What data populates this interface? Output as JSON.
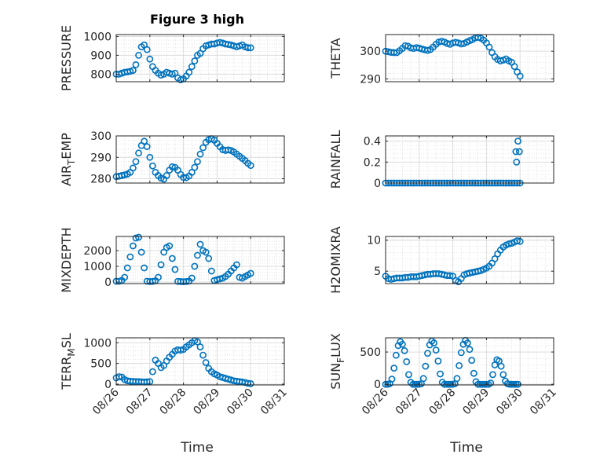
{
  "figure": {
    "title": "Figure 3 high",
    "xlabel": "Time",
    "xticks": [
      "08/26",
      "08/27",
      "08/28",
      "08/29",
      "08/30",
      "08/31"
    ],
    "marker_color": "#0072BD"
  },
  "chart_data": [
    {
      "type": "scatter",
      "ylabel": "PRESSURE",
      "ylabel_parts": [
        "PRESSURE"
      ],
      "ylim": [
        760,
        1010
      ],
      "yticks": [
        800,
        900,
        1000
      ],
      "grid": true,
      "x": [
        "08/26 00:00",
        "08/26 02:00",
        "08/26 04:00",
        "08/26 06:00",
        "08/26 08:00",
        "08/26 10:00",
        "08/26 12:00",
        "08/26 14:00",
        "08/26 16:00",
        "08/26 18:00",
        "08/26 20:00",
        "08/26 22:00",
        "08/27 00:00",
        "08/27 02:00",
        "08/27 04:00",
        "08/27 06:00",
        "08/27 08:00",
        "08/27 10:00",
        "08/27 12:00",
        "08/27 14:00",
        "08/27 16:00",
        "08/27 18:00",
        "08/27 20:00",
        "08/27 22:00",
        "08/28 00:00",
        "08/28 02:00",
        "08/28 04:00",
        "08/28 06:00",
        "08/28 08:00",
        "08/28 10:00",
        "08/28 12:00",
        "08/28 14:00",
        "08/28 16:00",
        "08/28 18:00",
        "08/28 20:00",
        "08/28 22:00",
        "08/29 00:00",
        "08/29 02:00",
        "08/29 04:00",
        "08/29 06:00",
        "08/29 08:00",
        "08/29 10:00",
        "08/29 12:00",
        "08/29 14:00",
        "08/29 16:00",
        "08/29 18:00",
        "08/29 20:00",
        "08/29 22:00",
        "08/30 00:00"
      ],
      "y": [
        800,
        800,
        805,
        810,
        812,
        815,
        820,
        850,
        900,
        945,
        955,
        930,
        880,
        840,
        820,
        805,
        795,
        800,
        810,
        805,
        800,
        805,
        780,
        770,
        775,
        790,
        810,
        840,
        870,
        900,
        910,
        935,
        950,
        955,
        960,
        960,
        965,
        968,
        965,
        960,
        958,
        955,
        950,
        945,
        950,
        955,
        945,
        940,
        940
      ]
    },
    {
      "type": "scatter",
      "ylabel": "THETA",
      "ylabel_parts": [
        "THETA"
      ],
      "ylim": [
        289,
        306
      ],
      "yticks": [
        290,
        300
      ],
      "grid": true,
      "x": [
        "08/26 00:00",
        "08/26 02:00",
        "08/26 04:00",
        "08/26 06:00",
        "08/26 08:00",
        "08/26 10:00",
        "08/26 12:00",
        "08/26 14:00",
        "08/26 16:00",
        "08/26 18:00",
        "08/26 20:00",
        "08/26 22:00",
        "08/27 00:00",
        "08/27 02:00",
        "08/27 04:00",
        "08/27 06:00",
        "08/27 08:00",
        "08/27 10:00",
        "08/27 12:00",
        "08/27 14:00",
        "08/27 16:00",
        "08/27 18:00",
        "08/27 20:00",
        "08/27 22:00",
        "08/28 00:00",
        "08/28 02:00",
        "08/28 04:00",
        "08/28 06:00",
        "08/28 08:00",
        "08/28 10:00",
        "08/28 12:00",
        "08/28 14:00",
        "08/28 16:00",
        "08/28 18:00",
        "08/28 20:00",
        "08/28 22:00",
        "08/29 00:00",
        "08/29 02:00",
        "08/29 04:00",
        "08/29 06:00",
        "08/29 08:00",
        "08/29 10:00",
        "08/29 12:00",
        "08/29 14:00",
        "08/29 16:00",
        "08/29 18:00",
        "08/29 20:00",
        "08/29 22:00",
        "08/30 00:00"
      ],
      "y": [
        300,
        299.8,
        299.6,
        299.5,
        299.5,
        300.2,
        301,
        302,
        301.8,
        301.2,
        301,
        301.3,
        301.1,
        300.8,
        300.5,
        300.3,
        300.6,
        301.5,
        302.5,
        303.3,
        303.6,
        303.3,
        302.8,
        302.5,
        303,
        303.2,
        303,
        302.6,
        302.8,
        303.3,
        303.8,
        304.2,
        304.8,
        305,
        304.7,
        304,
        303,
        301.5,
        299.5,
        298,
        297,
        296.5,
        296.8,
        297.2,
        296.5,
        296,
        294.5,
        292.5,
        291
      ]
    },
    {
      "type": "scatter",
      "ylabel": "AIR_TEMP",
      "ylabel_parts": [
        "AIR",
        "T",
        "EMP"
      ],
      "ylim": [
        278,
        300
      ],
      "yticks": [
        280,
        290,
        300
      ],
      "grid": true,
      "x": [
        "08/26 00:00",
        "08/26 02:00",
        "08/26 04:00",
        "08/26 06:00",
        "08/26 08:00",
        "08/26 10:00",
        "08/26 12:00",
        "08/26 14:00",
        "08/26 16:00",
        "08/26 18:00",
        "08/26 20:00",
        "08/26 22:00",
        "08/27 00:00",
        "08/27 02:00",
        "08/27 04:00",
        "08/27 06:00",
        "08/27 08:00",
        "08/27 10:00",
        "08/27 12:00",
        "08/27 14:00",
        "08/27 16:00",
        "08/27 18:00",
        "08/27 20:00",
        "08/27 22:00",
        "08/28 00:00",
        "08/28 02:00",
        "08/28 04:00",
        "08/28 06:00",
        "08/28 08:00",
        "08/28 10:00",
        "08/28 12:00",
        "08/28 14:00",
        "08/28 16:00",
        "08/28 18:00",
        "08/28 20:00",
        "08/28 22:00",
        "08/29 00:00",
        "08/29 02:00",
        "08/29 04:00",
        "08/29 06:00",
        "08/29 08:00",
        "08/29 10:00",
        "08/29 12:00",
        "08/29 14:00",
        "08/29 16:00",
        "08/29 18:00",
        "08/29 20:00",
        "08/29 22:00",
        "08/30 00:00"
      ],
      "y": [
        281,
        281.2,
        281.5,
        281.8,
        282.2,
        283,
        285,
        288,
        292,
        295.5,
        297.5,
        295,
        290,
        286,
        283,
        281.5,
        280.3,
        279.8,
        281.5,
        284,
        285.6,
        285.3,
        284,
        282,
        280.6,
        280.5,
        281.3,
        283,
        285.3,
        288,
        291.5,
        294.5,
        297,
        298.2,
        298.7,
        298,
        296.5,
        295,
        293.6,
        293.2,
        293.5,
        293.2,
        292.5,
        291.5,
        290.5,
        289.5,
        288.5,
        287.2,
        286.2
      ]
    },
    {
      "type": "scatter",
      "ylabel": "RAINFALL",
      "ylabel_parts": [
        "RAINFALL"
      ],
      "ylim": [
        0,
        0.45
      ],
      "yticks": [
        0,
        0.2,
        0.4
      ],
      "grid": true,
      "x": [
        "08/26 00:00",
        "08/26 02:00",
        "08/26 04:00",
        "08/26 06:00",
        "08/26 08:00",
        "08/26 10:00",
        "08/26 12:00",
        "08/26 14:00",
        "08/26 16:00",
        "08/26 18:00",
        "08/26 20:00",
        "08/26 22:00",
        "08/27 00:00",
        "08/27 02:00",
        "08/27 04:00",
        "08/27 06:00",
        "08/27 08:00",
        "08/27 10:00",
        "08/27 12:00",
        "08/27 14:00",
        "08/27 16:00",
        "08/27 18:00",
        "08/27 20:00",
        "08/27 22:00",
        "08/28 00:00",
        "08/28 02:00",
        "08/28 04:00",
        "08/28 06:00",
        "08/28 08:00",
        "08/28 10:00",
        "08/28 12:00",
        "08/28 14:00",
        "08/28 16:00",
        "08/28 18:00",
        "08/28 20:00",
        "08/28 22:00",
        "08/29 00:00",
        "08/29 02:00",
        "08/29 04:00",
        "08/29 06:00",
        "08/29 08:00",
        "08/29 10:00",
        "08/29 12:00",
        "08/29 14:00",
        "08/29 16:00",
        "08/29 18:00",
        "08/29 20:00",
        "08/29 22:00",
        "08/30 00:00",
        "08/29 21:00",
        "08/29 21:30",
        "08/29 22:30",
        "08/29 23:30"
      ],
      "y": [
        0,
        0,
        0,
        0,
        0,
        0,
        0,
        0,
        0,
        0,
        0,
        0,
        0,
        0,
        0,
        0,
        0,
        0,
        0,
        0,
        0,
        0,
        0,
        0,
        0,
        0,
        0,
        0,
        0,
        0,
        0,
        0,
        0,
        0,
        0,
        0,
        0,
        0,
        0,
        0,
        0,
        0,
        0,
        0,
        0,
        0,
        0,
        0,
        0,
        0.3,
        0.2,
        0.4,
        0.3
      ]
    },
    {
      "type": "scatter",
      "ylabel": "MIXDEPTH",
      "ylabel_parts": [
        "MIXDEPTH"
      ],
      "ylim": [
        -100,
        2900
      ],
      "yticks": [
        0,
        1000,
        2000
      ],
      "grid": true,
      "x": [
        "08/26 00:00",
        "08/26 02:00",
        "08/26 04:00",
        "08/26 06:00",
        "08/26 08:00",
        "08/26 10:00",
        "08/26 12:00",
        "08/26 14:00",
        "08/26 16:00",
        "08/26 18:00",
        "08/26 20:00",
        "08/26 22:00",
        "08/27 00:00",
        "08/27 02:00",
        "08/27 04:00",
        "08/27 06:00",
        "08/27 08:00",
        "08/27 10:00",
        "08/27 12:00",
        "08/27 14:00",
        "08/27 16:00",
        "08/27 18:00",
        "08/27 20:00",
        "08/27 22:00",
        "08/28 00:00",
        "08/28 02:00",
        "08/28 04:00",
        "08/28 06:00",
        "08/28 08:00",
        "08/28 10:00",
        "08/28 12:00",
        "08/28 14:00",
        "08/28 16:00",
        "08/28 18:00",
        "08/28 20:00",
        "08/28 22:00",
        "08/29 00:00",
        "08/29 02:00",
        "08/29 04:00",
        "08/29 06:00",
        "08/29 08:00",
        "08/29 10:00",
        "08/29 12:00",
        "08/29 14:00",
        "08/29 16:00",
        "08/29 18:00",
        "08/29 20:00",
        "08/29 22:00",
        "08/30 00:00"
      ],
      "y": [
        50,
        50,
        100,
        300,
        900,
        1600,
        2300,
        2800,
        2850,
        1900,
        900,
        50,
        30,
        40,
        80,
        300,
        1100,
        1900,
        2200,
        2300,
        1500,
        800,
        40,
        30,
        20,
        30,
        60,
        250,
        1000,
        1700,
        2400,
        2000,
        1900,
        1500,
        700,
        100,
        150,
        200,
        250,
        350,
        500,
        700,
        900,
        1100,
        300,
        250,
        350,
        450,
        550
      ]
    },
    {
      "type": "scatter",
      "ylabel": "H2OMIXRA",
      "ylabel_parts": [
        "H2OMIXRA"
      ],
      "ylim": [
        3,
        10.6
      ],
      "yticks": [
        5,
        10
      ],
      "grid": true,
      "x": [
        "08/26 00:00",
        "08/26 02:00",
        "08/26 04:00",
        "08/26 06:00",
        "08/26 08:00",
        "08/26 10:00",
        "08/26 12:00",
        "08/26 14:00",
        "08/26 16:00",
        "08/26 18:00",
        "08/26 20:00",
        "08/26 22:00",
        "08/27 00:00",
        "08/27 02:00",
        "08/27 04:00",
        "08/27 06:00",
        "08/27 08:00",
        "08/27 10:00",
        "08/27 12:00",
        "08/27 14:00",
        "08/27 16:00",
        "08/27 18:00",
        "08/27 20:00",
        "08/27 22:00",
        "08/28 00:00",
        "08/28 02:00",
        "08/28 04:00",
        "08/28 06:00",
        "08/28 08:00",
        "08/28 10:00",
        "08/28 12:00",
        "08/28 14:00",
        "08/28 16:00",
        "08/28 18:00",
        "08/28 20:00",
        "08/28 22:00",
        "08/29 00:00",
        "08/29 02:00",
        "08/29 04:00",
        "08/29 06:00",
        "08/29 08:00",
        "08/29 10:00",
        "08/29 12:00",
        "08/29 14:00",
        "08/29 16:00",
        "08/29 18:00",
        "08/29 20:00",
        "08/29 22:00",
        "08/30 00:00"
      ],
      "y": [
        4.2,
        3.8,
        3.7,
        3.8,
        3.9,
        3.9,
        3.9,
        4.0,
        4.0,
        4.1,
        4.1,
        4.1,
        4.2,
        4.3,
        4.4,
        4.5,
        4.5,
        4.6,
        4.6,
        4.6,
        4.5,
        4.4,
        4.3,
        4.3,
        4.2,
        3.5,
        3.3,
        3.8,
        4.4,
        4.6,
        4.7,
        4.8,
        4.9,
        5.0,
        5.1,
        5.3,
        5.5,
        5.8,
        6.3,
        7.0,
        7.8,
        8.4,
        8.9,
        9.2,
        9.4,
        9.5,
        9.7,
        9.9,
        9.8
      ]
    },
    {
      "type": "scatter",
      "ylabel": "TERR_MSL",
      "ylabel_parts": [
        "TERR",
        "M",
        "SL"
      ],
      "ylim": [
        -20,
        1120
      ],
      "yticks": [
        0,
        500,
        1000
      ],
      "grid": true,
      "x": [
        "08/26 00:00",
        "08/26 02:00",
        "08/26 04:00",
        "08/26 06:00",
        "08/26 08:00",
        "08/26 10:00",
        "08/26 12:00",
        "08/26 14:00",
        "08/26 16:00",
        "08/26 18:00",
        "08/26 20:00",
        "08/26 22:00",
        "08/27 00:00",
        "08/27 02:00",
        "08/27 04:00",
        "08/27 06:00",
        "08/27 08:00",
        "08/27 10:00",
        "08/27 12:00",
        "08/27 14:00",
        "08/27 16:00",
        "08/27 18:00",
        "08/27 20:00",
        "08/27 22:00",
        "08/28 00:00",
        "08/28 02:00",
        "08/28 04:00",
        "08/28 06:00",
        "08/28 08:00",
        "08/28 10:00",
        "08/28 12:00",
        "08/28 14:00",
        "08/28 16:00",
        "08/28 18:00",
        "08/28 20:00",
        "08/28 22:00",
        "08/29 00:00",
        "08/29 02:00",
        "08/29 04:00",
        "08/29 06:00",
        "08/29 08:00",
        "08/29 10:00",
        "08/29 12:00",
        "08/29 14:00",
        "08/29 16:00",
        "08/29 18:00",
        "08/29 20:00",
        "08/29 22:00",
        "08/30 00:00"
      ],
      "y": [
        150,
        180,
        170,
        110,
        80,
        70,
        65,
        60,
        60,
        55,
        50,
        55,
        60,
        300,
        580,
        500,
        400,
        450,
        560,
        650,
        720,
        800,
        830,
        820,
        840,
        900,
        950,
        1000,
        1050,
        1020,
        900,
        700,
        520,
        380,
        300,
        250,
        220,
        180,
        160,
        140,
        120,
        100,
        80,
        70,
        60,
        50,
        40,
        20,
        10
      ]
    },
    {
      "type": "scatter",
      "ylabel": "SUN_FLUX",
      "ylabel_parts": [
        "SUN",
        "F",
        "LUX"
      ],
      "ylim": [
        -10,
        720
      ],
      "yticks": [
        0,
        500
      ],
      "grid": true,
      "x": [
        "08/26 00:00",
        "08/26 01:30",
        "08/26 03:00",
        "08/26 04:30",
        "08/26 06:00",
        "08/26 07:30",
        "08/26 09:00",
        "08/26 10:30",
        "08/26 12:00",
        "08/26 13:30",
        "08/26 15:00",
        "08/26 16:30",
        "08/26 18:00",
        "08/26 19:30",
        "08/26 21:00",
        "08/26 22:30",
        "08/27 00:00",
        "08/27 01:30",
        "08/27 03:00",
        "08/27 04:30",
        "08/27 06:00",
        "08/27 07:30",
        "08/27 09:00",
        "08/27 10:30",
        "08/27 12:00",
        "08/27 13:30",
        "08/27 15:00",
        "08/27 16:30",
        "08/27 18:00",
        "08/27 19:30",
        "08/27 21:00",
        "08/27 22:30",
        "08/28 00:00",
        "08/28 01:30",
        "08/28 03:00",
        "08/28 04:30",
        "08/28 06:00",
        "08/28 07:30",
        "08/28 09:00",
        "08/28 10:30",
        "08/28 12:00",
        "08/28 13:30",
        "08/28 15:00",
        "08/28 16:30",
        "08/28 18:00",
        "08/28 19:30",
        "08/28 21:00",
        "08/28 22:30",
        "08/29 00:00",
        "08/29 01:30",
        "08/29 03:00",
        "08/29 04:30",
        "08/29 06:00",
        "08/29 07:30",
        "08/29 09:00",
        "08/29 10:30",
        "08/29 12:00",
        "08/29 13:30",
        "08/29 15:00",
        "08/29 16:30",
        "08/29 18:00",
        "08/29 19:30",
        "08/29 21:00",
        "08/29 22:30"
      ],
      "y": [
        0,
        0,
        10,
        80,
        250,
        450,
        600,
        660,
        620,
        520,
        350,
        150,
        30,
        0,
        0,
        0,
        0,
        10,
        90,
        280,
        480,
        610,
        670,
        640,
        530,
        360,
        160,
        30,
        0,
        0,
        0,
        0,
        0,
        10,
        90,
        290,
        490,
        620,
        680,
        640,
        540,
        370,
        170,
        40,
        0,
        0,
        0,
        0,
        0,
        0,
        20,
        150,
        300,
        380,
        360,
        280,
        150,
        50,
        10,
        0,
        0,
        0,
        0,
        0
      ]
    }
  ]
}
